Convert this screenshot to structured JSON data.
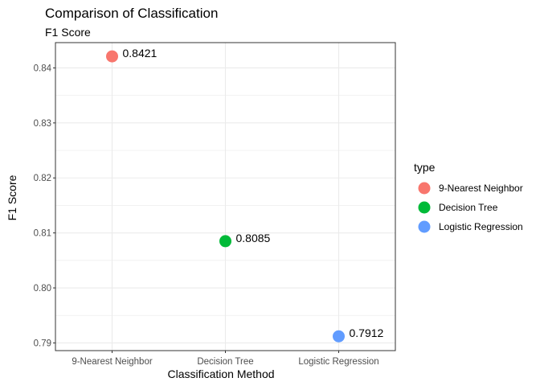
{
  "chart_data": {
    "type": "scatter",
    "title": "Comparison of Classification",
    "subtitle": "F1 Score",
    "xlabel": "Classification Method",
    "ylabel": "F1 Score",
    "categories": [
      "9-Nearest Neighbor",
      "Decision Tree",
      "Logistic Regression"
    ],
    "values": [
      0.8421,
      0.8085,
      0.7912
    ],
    "data_labels": [
      "0.8421",
      "0.8085",
      "0.7912"
    ],
    "ylim": [
      0.7886,
      0.8446
    ],
    "yticks": [
      0.79,
      0.8,
      0.81,
      0.82,
      0.83,
      0.84
    ],
    "ytick_labels": [
      "0.79",
      "0.80",
      "0.81",
      "0.82",
      "0.83",
      "0.84"
    ],
    "grid": true,
    "legend": {
      "title": "type",
      "position": "right",
      "entries": [
        "9-Nearest Neighbor",
        "Decision Tree",
        "Logistic Regression"
      ]
    },
    "colors": [
      "#F8766D",
      "#00BA38",
      "#619CFF"
    ],
    "grid_color": "#ebebeb",
    "panel_border_color": "#333333"
  }
}
